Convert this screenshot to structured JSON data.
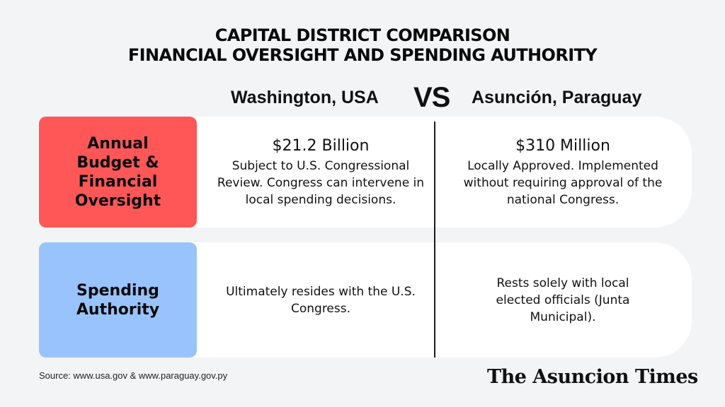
{
  "title": {
    "line1": "CAPITAL DISTRICT COMPARISON",
    "line2": "FINANCIAL OVERSIGHT AND SPENDING AUTHORITY"
  },
  "columns": {
    "left": "Washington, USA",
    "vs": "VS",
    "right": "Asunción, Paraguay"
  },
  "rows": [
    {
      "label_lines": [
        "Annual",
        "Budget &",
        "Financial",
        "Oversight"
      ],
      "label_color": "#ff5757",
      "usa": {
        "amount": "$21.2 Billion",
        "text": "Subject to U.S. Congressional Review. Congress can intervene in local spending decisions."
      },
      "paraguay": {
        "amount": "$310 Million",
        "text": "Locally Approved. Implemented without requiring approval of the national Congress."
      }
    },
    {
      "label_lines": [
        "Spending",
        "Authority"
      ],
      "label_color": "#98c3fc",
      "usa": {
        "text": "Ultimately resides with the U.S. Congress."
      },
      "paraguay": {
        "text": "Rests solely with local elected officials (Junta Municipal)."
      }
    }
  ],
  "footer": {
    "source": "Source: www.usa.gov & www.paraguay.gov.py",
    "brand": "The Asuncion Times"
  }
}
